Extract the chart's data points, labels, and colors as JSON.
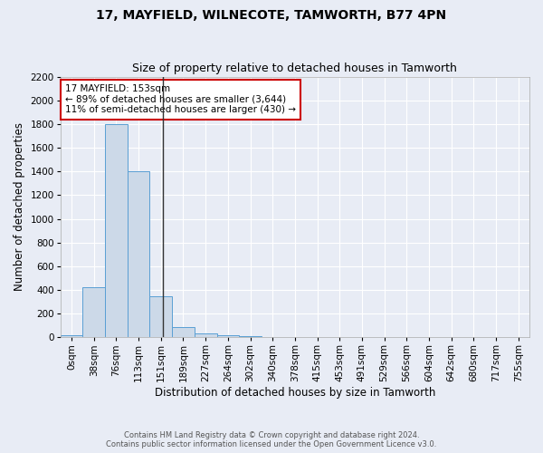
{
  "title": "17, MAYFIELD, WILNECOTE, TAMWORTH, B77 4PN",
  "subtitle": "Size of property relative to detached houses in Tamworth",
  "xlabel": "Distribution of detached houses by size in Tamworth",
  "ylabel": "Number of detached properties",
  "footer_line1": "Contains HM Land Registry data © Crown copyright and database right 2024.",
  "footer_line2": "Contains public sector information licensed under the Open Government Licence v3.0.",
  "bin_labels": [
    "0sqm",
    "38sqm",
    "76sqm",
    "113sqm",
    "151sqm",
    "189sqm",
    "227sqm",
    "264sqm",
    "302sqm",
    "340sqm",
    "378sqm",
    "415sqm",
    "453sqm",
    "491sqm",
    "529sqm",
    "566sqm",
    "604sqm",
    "642sqm",
    "680sqm",
    "717sqm",
    "755sqm"
  ],
  "bar_values": [
    15,
    420,
    1800,
    1400,
    350,
    90,
    35,
    20,
    10,
    0,
    0,
    0,
    0,
    0,
    0,
    0,
    0,
    0,
    0,
    0,
    0
  ],
  "bar_color": "#ccd9e8",
  "bar_edge_color": "#5a9fd4",
  "vline_x_index": 4,
  "vline_color": "#333333",
  "annotation_line1": "17 MAYFIELD: 153sqm",
  "annotation_line2": "← 89% of detached houses are smaller (3,644)",
  "annotation_line3": "11% of semi-detached houses are larger (430) →",
  "annotation_box_color": "#ffffff",
  "annotation_box_edge": "#cc0000",
  "ylim": [
    0,
    2200
  ],
  "yticks": [
    0,
    200,
    400,
    600,
    800,
    1000,
    1200,
    1400,
    1600,
    1800,
    2000,
    2200
  ],
  "bg_color": "#e8ecf5",
  "plot_bg_color": "#e8ecf5",
  "grid_color": "#ffffff",
  "title_fontsize": 10,
  "subtitle_fontsize": 9,
  "axis_label_fontsize": 8.5,
  "tick_fontsize": 7.5,
  "annotation_fontsize": 7.5
}
